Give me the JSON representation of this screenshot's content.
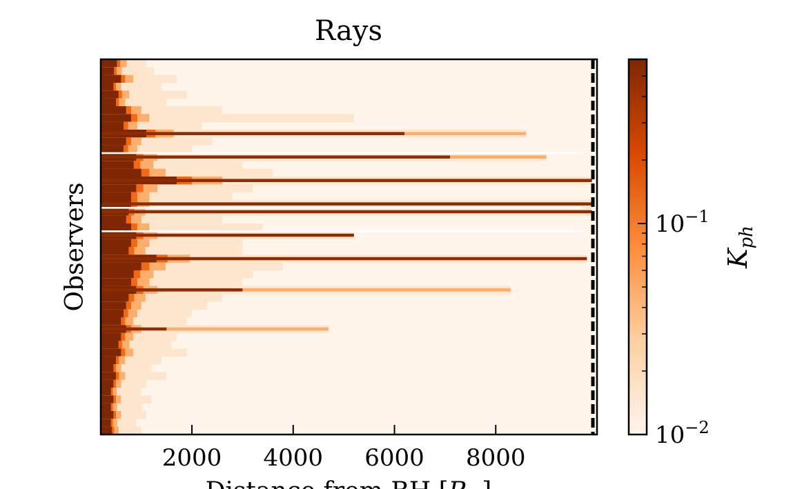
{
  "chart_data": {
    "type": "heatmap",
    "title": "Rays",
    "xlabel": "Distance from BH [R_☉]",
    "xlabel_text": "Distance from BH",
    "xlabel_unit_open": "[",
    "xlabel_unit_main": "R",
    "xlabel_unit_sub": "☉",
    "xlabel_unit_close": "]",
    "ylabel": "Observers",
    "xlim": [
      200,
      10000
    ],
    "x_ticks": [
      2000,
      4000,
      6000,
      8000
    ],
    "x_tick_labels": [
      "2000",
      "4000",
      "6000",
      "8000"
    ],
    "y_ticks_shown": false,
    "colormap": "Oranges",
    "scale": "log",
    "colorbar": {
      "label_main": "K",
      "label_sub": "ph",
      "vmin": 0.01,
      "vmax": 0.6,
      "ticks": [
        {
          "base": "10",
          "exponent": "−2",
          "value": 0.01
        },
        {
          "base": "10",
          "exponent": "−1",
          "value": 0.1
        }
      ]
    },
    "observers": 48,
    "rays": [
      {
        "observer": 0,
        "core_end": 520,
        "tail_end": 1100
      },
      {
        "observer": 1,
        "core_end": 460,
        "tail_end": 1250
      },
      {
        "observer": 2,
        "core_end": 600,
        "tail_end": 1700
      },
      {
        "observer": 3,
        "core_end": 450,
        "tail_end": 1400
      },
      {
        "observer": 4,
        "core_end": 550,
        "tail_end": 1900
      },
      {
        "observer": 5,
        "core_end": 500,
        "tail_end": 1500
      },
      {
        "observer": 6,
        "core_end": 700,
        "tail_end": 2600
      },
      {
        "observer": 7,
        "core_end": 800,
        "tail_end": 5200
      },
      {
        "observer": 8,
        "core_end": 650,
        "tail_end": 2200
      },
      {
        "observer": 9,
        "core_end": 1100,
        "tail_end": 8600,
        "strong_end": 6200
      },
      {
        "observer": 10,
        "core_end": 700,
        "tail_end": 2400
      },
      {
        "observer": 11,
        "core_end": 650,
        "tail_end": 2000
      },
      {
        "observer": 12,
        "core_end": 900,
        "tail_end": 9000,
        "strong_end": 7100
      },
      {
        "observer": 13,
        "core_end": 850,
        "tail_end": 3000
      },
      {
        "observer": 14,
        "core_end": 1000,
        "tail_end": 3600
      },
      {
        "observer": 15,
        "core_end": 1700,
        "tail_end": 9900,
        "strong_end": 9900
      },
      {
        "observer": 16,
        "core_end": 900,
        "tail_end": 3200
      },
      {
        "observer": 17,
        "core_end": 800,
        "tail_end": 2800
      },
      {
        "observer": 18,
        "core_end": 800,
        "tail_end": 9900,
        "strong_end": 9900
      },
      {
        "observer": 19,
        "core_end": 750,
        "tail_end": 9900,
        "strong_end": 9900
      },
      {
        "observer": 20,
        "core_end": 700,
        "tail_end": 2600
      },
      {
        "observer": 21,
        "core_end": 800,
        "tail_end": 3400
      },
      {
        "observer": 22,
        "core_end": 900,
        "tail_end": 5200,
        "strong_end": 5200
      },
      {
        "observer": 23,
        "core_end": 800,
        "tail_end": 3000
      },
      {
        "observer": 24,
        "core_end": 750,
        "tail_end": 3000
      },
      {
        "observer": 25,
        "core_end": 1300,
        "tail_end": 9800,
        "strong_end": 9800
      },
      {
        "observer": 26,
        "core_end": 1000,
        "tail_end": 3800
      },
      {
        "observer": 27,
        "core_end": 850,
        "tail_end": 3200
      },
      {
        "observer": 28,
        "core_end": 800,
        "tail_end": 3000
      },
      {
        "observer": 29,
        "core_end": 900,
        "tail_end": 8300,
        "strong_end": 3000
      },
      {
        "observer": 30,
        "core_end": 750,
        "tail_end": 2600
      },
      {
        "observer": 31,
        "core_end": 700,
        "tail_end": 2300
      },
      {
        "observer": 32,
        "core_end": 650,
        "tail_end": 2000
      },
      {
        "observer": 33,
        "core_end": 600,
        "tail_end": 1900
      },
      {
        "observer": 34,
        "core_end": 700,
        "tail_end": 4700,
        "strong_end": 1500
      },
      {
        "observer": 35,
        "core_end": 600,
        "tail_end": 1700
      },
      {
        "observer": 36,
        "core_end": 550,
        "tail_end": 1600
      },
      {
        "observer": 37,
        "core_end": 600,
        "tail_end": 1900
      },
      {
        "observer": 38,
        "core_end": 500,
        "tail_end": 1400
      },
      {
        "observer": 39,
        "core_end": 450,
        "tail_end": 1200
      },
      {
        "observer": 40,
        "core_end": 500,
        "tail_end": 1500
      },
      {
        "observer": 41,
        "core_end": 450,
        "tail_end": 1100
      },
      {
        "observer": 42,
        "core_end": 400,
        "tail_end": 1000
      },
      {
        "observer": 43,
        "core_end": 450,
        "tail_end": 1200
      },
      {
        "observer": 44,
        "core_end": 400,
        "tail_end": 1000
      },
      {
        "observer": 45,
        "core_end": 450,
        "tail_end": 1100
      },
      {
        "observer": 46,
        "core_end": 400,
        "tail_end": 900
      },
      {
        "observer": 47,
        "core_end": 420,
        "tail_end": 1000
      }
    ],
    "gap_rows_after": [
      12,
      19,
      22
    ]
  }
}
